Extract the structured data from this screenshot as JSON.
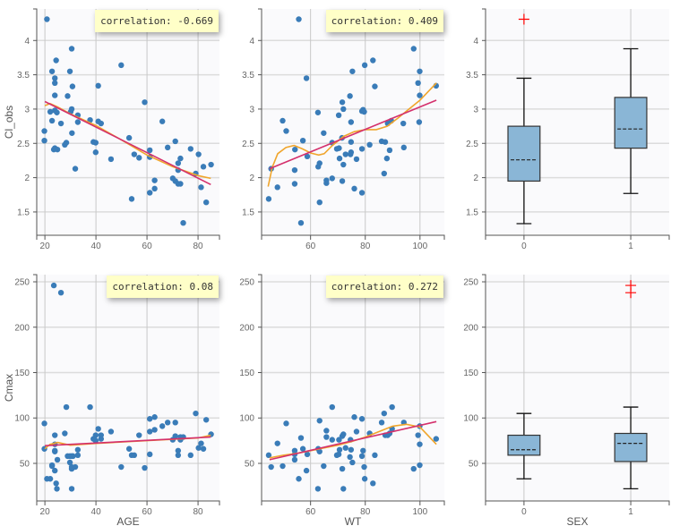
{
  "colors": {
    "point": "#3a7cb8",
    "linear_fit": "#d4306c",
    "loess": "#f0a52c",
    "box_fill": "#8ab6d6",
    "outlier": "#ff0000",
    "plot_bg": "#fafafc",
    "grid": "#dcdcdc"
  },
  "chart_data": [
    {
      "type": "scatter",
      "id": "age_cl",
      "xlabel": "",
      "ylabel": "Cl_obs",
      "xlim": [
        16.8,
        88.4
      ],
      "ylim": [
        1.16,
        4.46
      ],
      "xticks": [
        20,
        40,
        60,
        80
      ],
      "yticks": [
        1.5,
        2,
        2.5,
        3,
        3.5,
        4
      ],
      "grid": true,
      "annotation": "correlation: -0.669",
      "points": [
        [
          20.8,
          4.31
        ],
        [
          19.8,
          2.68
        ],
        [
          19.8,
          2.54
        ],
        [
          22.1,
          2.96
        ],
        [
          22.8,
          3.55
        ],
        [
          22.8,
          2.83
        ],
        [
          23.9,
          3.45
        ],
        [
          23.9,
          3.38
        ],
        [
          23.9,
          3.2
        ],
        [
          23.9,
          2.98
        ],
        [
          24.4,
          3.71
        ],
        [
          23.5,
          2.41
        ],
        [
          23.9,
          2.43
        ],
        [
          24.9,
          2.41
        ],
        [
          24.7,
          2.95
        ],
        [
          26.3,
          2.79
        ],
        [
          27.8,
          2.48
        ],
        [
          28.4,
          2.51
        ],
        [
          28.9,
          3.19
        ],
        [
          29.8,
          3.55
        ],
        [
          30.1,
          2.96
        ],
        [
          30.5,
          3.0
        ],
        [
          30.5,
          3.88
        ],
        [
          30.8,
          3.33
        ],
        [
          30.6,
          2.65
        ],
        [
          31.9,
          2.13
        ],
        [
          32.9,
          2.91
        ],
        [
          32.9,
          2.81
        ],
        [
          37.7,
          2.84
        ],
        [
          39.0,
          2.52
        ],
        [
          39.9,
          2.51
        ],
        [
          39.9,
          2.37
        ],
        [
          40.9,
          3.34
        ],
        [
          40.9,
          2.82
        ],
        [
          42.0,
          2.79
        ],
        [
          45.9,
          2.27
        ],
        [
          49.9,
          3.64
        ],
        [
          53.0,
          2.58
        ],
        [
          54.0,
          1.69
        ],
        [
          55.0,
          2.34
        ],
        [
          56.9,
          2.29
        ],
        [
          59.1,
          3.1
        ],
        [
          61.1,
          2.4
        ],
        [
          61.1,
          2.3
        ],
        [
          61.1,
          1.78
        ],
        [
          63.0,
          1.96
        ],
        [
          63.0,
          1.84
        ],
        [
          66.0,
          2.82
        ],
        [
          68.1,
          2.44
        ],
        [
          70.1,
          1.99
        ],
        [
          71.1,
          2.53
        ],
        [
          71.1,
          1.95
        ],
        [
          72.2,
          2.21
        ],
        [
          72.2,
          2.11
        ],
        [
          72.2,
          1.91
        ],
        [
          73.1,
          2.28
        ],
        [
          73.1,
          1.91
        ],
        [
          74.2,
          1.34
        ],
        [
          77.1,
          2.42
        ],
        [
          79.1,
          2.06
        ],
        [
          80.2,
          2.34
        ],
        [
          81.2,
          1.86
        ],
        [
          82.1,
          2.16
        ],
        [
          83.2,
          1.64
        ],
        [
          85.1,
          2.19
        ]
      ],
      "linear_fit": [
        [
          20,
          3.11
        ],
        [
          85,
          1.9
        ]
      ],
      "loess": [
        [
          20,
          3.05
        ],
        [
          22,
          3.08
        ],
        [
          25,
          3.03
        ],
        [
          30,
          2.93
        ],
        [
          40,
          2.76
        ],
        [
          50,
          2.55
        ],
        [
          60,
          2.33
        ],
        [
          70,
          2.16
        ],
        [
          80,
          2.03
        ],
        [
          85,
          1.99
        ]
      ]
    },
    {
      "type": "scatter",
      "id": "wt_cl",
      "xlabel": "",
      "ylabel": "",
      "xlim": [
        42.1,
        108.9
      ],
      "ylim": [
        1.16,
        4.46
      ],
      "xticks": [
        60,
        80,
        100
      ],
      "yticks": [
        1.5,
        2,
        2.5,
        3,
        3.5,
        4
      ],
      "grid": true,
      "annotation": "correlation: 0.409",
      "points": [
        [
          44.7,
          1.69
        ],
        [
          45.6,
          2.13
        ],
        [
          47.9,
          1.86
        ],
        [
          49.8,
          2.83
        ],
        [
          51.1,
          2.68
        ],
        [
          54.2,
          2.11
        ],
        [
          54.3,
          2.41
        ],
        [
          54.2,
          1.91
        ],
        [
          55.7,
          4.31
        ],
        [
          56.5,
          1.34
        ],
        [
          57.2,
          2.54
        ],
        [
          58.5,
          3.45
        ],
        [
          58.8,
          2.31
        ],
        [
          62.7,
          2.95
        ],
        [
          62.8,
          2.16
        ],
        [
          63.3,
          2.21
        ],
        [
          63.3,
          1.64
        ],
        [
          64.8,
          2.65
        ],
        [
          65.8,
          1.96
        ],
        [
          65.8,
          1.92
        ],
        [
          67.9,
          2.51
        ],
        [
          67.9,
          1.99
        ],
        [
          69.6,
          2.42
        ],
        [
          70.3,
          2.91
        ],
        [
          70.4,
          2.43
        ],
        [
          70.6,
          2.28
        ],
        [
          71.6,
          3.1
        ],
        [
          71.6,
          1.95
        ],
        [
          71.5,
          2.58
        ],
        [
          72.0,
          3.0
        ],
        [
          72.0,
          2.19
        ],
        [
          72.8,
          2.34
        ],
        [
          74.4,
          3.19
        ],
        [
          74.6,
          2.34
        ],
        [
          74.8,
          2.37
        ],
        [
          74.8,
          2.52
        ],
        [
          74.8,
          2.81
        ],
        [
          75.3,
          3.55
        ],
        [
          76.0,
          1.84
        ],
        [
          76.8,
          2.27
        ],
        [
          78.8,
          2.97
        ],
        [
          78.8,
          2.42
        ],
        [
          78.8,
          1.78
        ],
        [
          79.2,
          2.99
        ],
        [
          79.6,
          2.96
        ],
        [
          79.8,
          3.64
        ],
        [
          81.6,
          2.48
        ],
        [
          82.8,
          3.71
        ],
        [
          83.5,
          3.33
        ],
        [
          86.0,
          2.53
        ],
        [
          86.9,
          2.06
        ],
        [
          87.3,
          2.52
        ],
        [
          87.9,
          2.28
        ],
        [
          88.2,
          2.79
        ],
        [
          88.9,
          2.4
        ],
        [
          89.5,
          2.83
        ],
        [
          93.9,
          2.79
        ],
        [
          94.1,
          2.44
        ],
        [
          97.7,
          3.88
        ],
        [
          99.3,
          3.38
        ],
        [
          99.9,
          3.55
        ],
        [
          99.9,
          3.2
        ],
        [
          99.7,
          2.81
        ],
        [
          105.9,
          3.34
        ]
      ],
      "linear_fit": [
        [
          45,
          2.13
        ],
        [
          106,
          3.13
        ]
      ],
      "loess": [
        [
          44.5,
          1.87
        ],
        [
          46,
          2.15
        ],
        [
          48,
          2.35
        ],
        [
          51,
          2.44
        ],
        [
          54,
          2.47
        ],
        [
          57,
          2.42
        ],
        [
          60,
          2.36
        ],
        [
          63,
          2.33
        ],
        [
          65,
          2.35
        ],
        [
          68,
          2.47
        ],
        [
          72,
          2.6
        ],
        [
          76,
          2.67
        ],
        [
          80,
          2.7
        ],
        [
          84,
          2.7
        ],
        [
          88,
          2.75
        ],
        [
          92,
          2.87
        ],
        [
          96,
          3.0
        ],
        [
          100,
          3.13
        ],
        [
          106,
          3.38
        ]
      ]
    },
    {
      "type": "box",
      "id": "sex_cl",
      "xlabel": "",
      "ylabel": "",
      "xlim": [
        -0.36,
        1.36
      ],
      "ylim": [
        1.16,
        4.46
      ],
      "categories": [
        "0",
        "1"
      ],
      "yticks": [
        1.5,
        2,
        2.5,
        3,
        3.5,
        4
      ],
      "grid": true,
      "boxes": [
        {
          "category": "0",
          "whisker_low": 1.33,
          "q1": 1.95,
          "median": 2.26,
          "q3": 2.75,
          "whisker_high": 3.45,
          "outliers": [
            4.31
          ]
        },
        {
          "category": "1",
          "whisker_low": 1.77,
          "q1": 2.43,
          "median": 2.71,
          "q3": 3.17,
          "whisker_high": 3.88,
          "outliers": []
        }
      ]
    },
    {
      "type": "scatter",
      "id": "age_cmax",
      "xlabel": "AGE",
      "ylabel": "Cmax",
      "xlim": [
        16.8,
        88.4
      ],
      "ylim": [
        8.6,
        257.9
      ],
      "xticks": [
        20,
        40,
        60,
        80
      ],
      "yticks": [
        50,
        100,
        150,
        200,
        250
      ],
      "grid": true,
      "annotation": "correlation: 0.08",
      "points": [
        [
          19.8,
          94
        ],
        [
          19.8,
          66
        ],
        [
          20.8,
          33
        ],
        [
          22.1,
          33
        ],
        [
          22.8,
          48
        ],
        [
          22.8,
          47
        ],
        [
          23.5,
          246
        ],
        [
          23.9,
          81
        ],
        [
          23.9,
          71
        ],
        [
          23.9,
          64
        ],
        [
          23.9,
          63
        ],
        [
          23.9,
          42
        ],
        [
          24.4,
          28
        ],
        [
          24.7,
          22
        ],
        [
          24.9,
          54
        ],
        [
          26.3,
          238
        ],
        [
          27.8,
          83
        ],
        [
          28.4,
          112
        ],
        [
          28.9,
          58
        ],
        [
          29.8,
          58
        ],
        [
          29.8,
          51
        ],
        [
          30.5,
          58
        ],
        [
          30.5,
          46
        ],
        [
          30.5,
          44
        ],
        [
          30.5,
          22
        ],
        [
          31.0,
          58
        ],
        [
          31.9,
          46
        ],
        [
          32.9,
          65
        ],
        [
          32.9,
          59
        ],
        [
          37.7,
          112
        ],
        [
          39.0,
          77
        ],
        [
          39.9,
          81
        ],
        [
          39.9,
          75
        ],
        [
          40.9,
          88
        ],
        [
          42.0,
          81
        ],
        [
          42.0,
          77
        ],
        [
          45.9,
          85
        ],
        [
          49.9,
          46
        ],
        [
          53.0,
          66
        ],
        [
          54.0,
          59
        ],
        [
          55.0,
          59
        ],
        [
          56.9,
          81
        ],
        [
          59.1,
          45
        ],
        [
          61.1,
          99
        ],
        [
          61.1,
          85
        ],
        [
          61.1,
          60
        ],
        [
          63.0,
          101
        ],
        [
          63.0,
          87
        ],
        [
          66.0,
          91
        ],
        [
          68.1,
          95
        ],
        [
          70.1,
          76
        ],
        [
          71.1,
          95
        ],
        [
          71.1,
          80
        ],
        [
          72.2,
          64
        ],
        [
          72.2,
          59
        ],
        [
          73.1,
          76
        ],
        [
          73.1,
          79
        ],
        [
          74.2,
          79
        ],
        [
          77.1,
          59
        ],
        [
          79.1,
          105
        ],
        [
          80.2,
          67
        ],
        [
          81.2,
          72
        ],
        [
          82.1,
          66
        ],
        [
          83.2,
          98
        ],
        [
          85.1,
          82
        ]
      ],
      "linear_fit": [
        [
          20,
          69.5
        ],
        [
          85,
          79
        ]
      ],
      "loess": [
        [
          20,
          66
        ],
        [
          22,
          71
        ],
        [
          25,
          73
        ],
        [
          30,
          70
        ],
        [
          40,
          72
        ],
        [
          60,
          75
        ],
        [
          80,
          78
        ],
        [
          85,
          81
        ]
      ]
    },
    {
      "type": "scatter",
      "id": "wt_cmax",
      "xlabel": "WT",
      "ylabel": "",
      "xlim": [
        42.1,
        108.9
      ],
      "ylim": [
        8.6,
        257.9
      ],
      "xticks": [
        60,
        80,
        100
      ],
      "yticks": [
        50,
        100,
        150,
        200,
        250
      ],
      "grid": true,
      "annotation": "correlation: 0.272",
      "points": [
        [
          44.7,
          59
        ],
        [
          45.6,
          46
        ],
        [
          47.9,
          72
        ],
        [
          49.8,
          47
        ],
        [
          51.1,
          94
        ],
        [
          54.2,
          64
        ],
        [
          54.2,
          60
        ],
        [
          54.2,
          54
        ],
        [
          55.7,
          33
        ],
        [
          56.5,
          78
        ],
        [
          57.2,
          66
        ],
        [
          58.5,
          42
        ],
        [
          58.8,
          60
        ],
        [
          62.7,
          22
        ],
        [
          62.8,
          66
        ],
        [
          63.3,
          97
        ],
        [
          63.3,
          63
        ],
        [
          64.8,
          47
        ],
        [
          65.8,
          86
        ],
        [
          65.8,
          79
        ],
        [
          67.9,
          112
        ],
        [
          67.9,
          76
        ],
        [
          69.6,
          59
        ],
        [
          70.3,
          60
        ],
        [
          70.4,
          76
        ],
        [
          70.6,
          65
        ],
        [
          71.6,
          80
        ],
        [
          71.6,
          44
        ],
        [
          72.0,
          82
        ],
        [
          72.0,
          22
        ],
        [
          72.8,
          67
        ],
        [
          74.4,
          57
        ],
        [
          74.6,
          76
        ],
        [
          74.8,
          65
        ],
        [
          75.3,
          51
        ],
        [
          76.0,
          101
        ],
        [
          76.8,
          85
        ],
        [
          78.8,
          99
        ],
        [
          78.8,
          58
        ],
        [
          79.2,
          64
        ],
        [
          79.6,
          46
        ],
        [
          79.8,
          33
        ],
        [
          81.6,
          83
        ],
        [
          82.8,
          28
        ],
        [
          83.5,
          59
        ],
        [
          86.0,
          95
        ],
        [
          86.9,
          105
        ],
        [
          87.3,
          81
        ],
        [
          88.2,
          81
        ],
        [
          88.9,
          83
        ],
        [
          89.8,
          112
        ],
        [
          89.8,
          88
        ],
        [
          94.1,
          95
        ],
        [
          97.7,
          44
        ],
        [
          99.3,
          81
        ],
        [
          99.9,
          91
        ],
        [
          99.9,
          71
        ],
        [
          99.9,
          48
        ],
        [
          105.9,
          77
        ]
      ],
      "linear_fit": [
        [
          45,
          54
        ],
        [
          106,
          96
        ]
      ],
      "loess": [
        [
          45,
          56
        ],
        [
          50,
          59
        ],
        [
          55,
          61
        ],
        [
          60,
          64
        ],
        [
          65,
          67
        ],
        [
          70,
          70
        ],
        [
          75,
          74
        ],
        [
          80,
          79
        ],
        [
          85,
          85
        ],
        [
          90,
          91
        ],
        [
          95,
          93
        ],
        [
          100,
          90
        ],
        [
          106,
          71
        ]
      ]
    },
    {
      "type": "box",
      "id": "sex_cmax",
      "xlabel": "SEX",
      "ylabel": "",
      "xlim": [
        -0.36,
        1.36
      ],
      "ylim": [
        8.6,
        257.9
      ],
      "categories": [
        "0",
        "1"
      ],
      "yticks": [
        50,
        100,
        150,
        200,
        250
      ],
      "grid": true,
      "boxes": [
        {
          "category": "0",
          "whisker_low": 33,
          "q1": 59,
          "median": 65,
          "q3": 81,
          "whisker_high": 105,
          "outliers": []
        },
        {
          "category": "1",
          "whisker_low": 22,
          "q1": 52,
          "median": 72,
          "q3": 83,
          "whisker_high": 112,
          "outliers": [
            246,
            238
          ]
        }
      ]
    }
  ]
}
